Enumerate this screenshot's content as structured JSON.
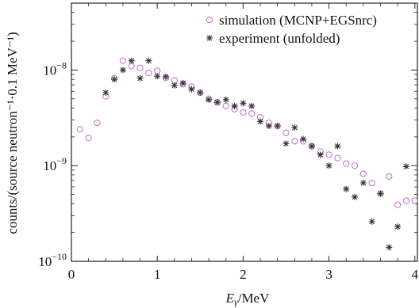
{
  "chart_data": {
    "type": "scatter",
    "xlabel_main": "E",
    "xlabel_sub": "γ",
    "xlabel_unit": "/MeV",
    "ylabel": "counts/(source neutron⁻¹·0.1 MeV⁻¹)",
    "xlim": [
      0,
      4.03
    ],
    "ylim": [
      1e-10,
      5e-08
    ],
    "yscale": "log",
    "grid": false,
    "legend_position": "top-right",
    "x_ticks": [
      {
        "value": 0,
        "label": "0"
      },
      {
        "value": 1,
        "label": "1"
      },
      {
        "value": 2,
        "label": "2"
      },
      {
        "value": 3,
        "label": "3"
      },
      {
        "value": 4,
        "label": "4"
      }
    ],
    "y_ticks": [
      {
        "value": 1e-10,
        "base": "10",
        "exp": "−10"
      },
      {
        "value": 1e-09,
        "base": "10",
        "exp": "−9"
      },
      {
        "value": 1e-08,
        "base": "10",
        "exp": "−8"
      }
    ],
    "series": [
      {
        "name": "simulation (MCNP+EGSnrc)",
        "marker": "circle",
        "color": "#cc77cc",
        "points": [
          [
            0.1,
            2.4e-09
          ],
          [
            0.2,
            1.95e-09
          ],
          [
            0.3,
            2.8e-09
          ],
          [
            0.4,
            5.3e-09
          ],
          [
            0.5,
            8.2e-09
          ],
          [
            0.6,
            1.25e-08
          ],
          [
            0.7,
            1.1e-08
          ],
          [
            0.8,
            1.05e-08
          ],
          [
            0.9,
            9.3e-09
          ],
          [
            1.0,
            9.8e-09
          ],
          [
            1.1,
            8.3e-09
          ],
          [
            1.2,
            7.8e-09
          ],
          [
            1.3,
            7.1e-09
          ],
          [
            1.4,
            6.7e-09
          ],
          [
            1.5,
            5.8e-09
          ],
          [
            1.6,
            5e-09
          ],
          [
            1.7,
            4.6e-09
          ],
          [
            1.8,
            4.2e-09
          ],
          [
            1.9,
            3.9e-09
          ],
          [
            2.0,
            3.6e-09
          ],
          [
            2.1,
            3.5e-09
          ],
          [
            2.2,
            3.2e-09
          ],
          [
            2.3,
            2.8e-09
          ],
          [
            2.4,
            2.6e-09
          ],
          [
            2.5,
            2.2e-09
          ],
          [
            2.6,
            1.8e-09
          ],
          [
            2.7,
            1.8e-09
          ],
          [
            2.8,
            1.6e-09
          ],
          [
            2.9,
            1.4e-09
          ],
          [
            3.0,
            1.3e-09
          ],
          [
            3.1,
            1.2e-09
          ],
          [
            3.2,
            1.05e-09
          ],
          [
            3.3,
            1e-09
          ],
          [
            3.4,
            8.2e-10
          ],
          [
            3.5,
            6.6e-10
          ],
          [
            3.6,
            5.1e-10
          ],
          [
            3.7,
            7.7e-10
          ],
          [
            3.8,
            3.9e-10
          ],
          [
            3.9,
            4.3e-10
          ],
          [
            4.0,
            4.3e-10
          ]
        ]
      },
      {
        "name": "experiment (unfolded)",
        "marker": "asterisk",
        "color": "#333333",
        "points": [
          [
            0.4,
            5.8e-09
          ],
          [
            0.5,
            8e-09
          ],
          [
            0.6,
            1e-08
          ],
          [
            0.7,
            1.25e-08
          ],
          [
            0.8,
            8.2e-09
          ],
          [
            0.9,
            1.25e-08
          ],
          [
            1.0,
            8.6e-09
          ],
          [
            1.1,
            8.5e-09
          ],
          [
            1.2,
            6.9e-09
          ],
          [
            1.3,
            7.3e-09
          ],
          [
            1.4,
            6.3e-09
          ],
          [
            1.5,
            5.8e-09
          ],
          [
            1.6,
            4.9e-09
          ],
          [
            1.7,
            4.6e-09
          ],
          [
            1.8,
            4.9e-09
          ],
          [
            1.9,
            4.2e-09
          ],
          [
            2.0,
            4.5e-09
          ],
          [
            2.1,
            4.2e-09
          ],
          [
            2.2,
            2.9e-09
          ],
          [
            2.3,
            2.6e-09
          ],
          [
            2.4,
            2.6e-09
          ],
          [
            2.5,
            1.7e-09
          ],
          [
            2.6,
            2.5e-09
          ],
          [
            2.7,
            1.9e-09
          ],
          [
            2.8,
            1.6e-09
          ],
          [
            2.9,
            1.3e-09
          ],
          [
            3.0,
            1e-09
          ],
          [
            3.1,
            1.6e-09
          ],
          [
            3.2,
            5.7e-10
          ],
          [
            3.3,
            4.7e-10
          ],
          [
            3.4,
            6.6e-10
          ],
          [
            3.5,
            2.6e-10
          ],
          [
            3.6,
            5.1e-10
          ],
          [
            3.7,
            1.4e-10
          ],
          [
            3.8,
            2.3e-10
          ],
          [
            3.9,
            9.8e-10
          ]
        ]
      }
    ]
  }
}
